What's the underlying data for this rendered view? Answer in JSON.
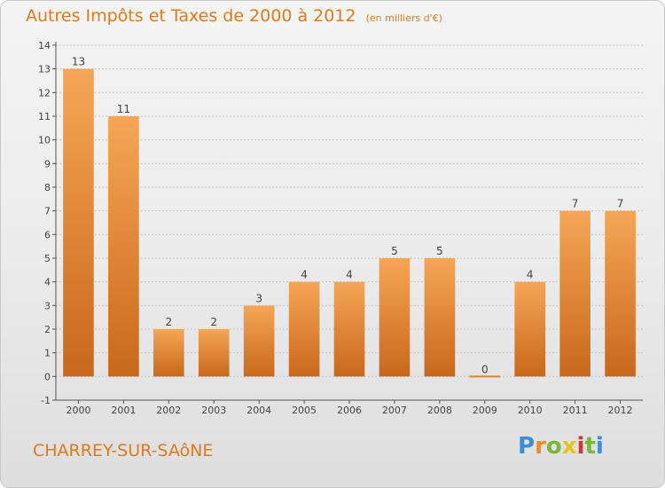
{
  "title": "Autres Impôts et Taxes de 2000 à 2012",
  "unit_note": "(en milliers d'€)",
  "commune": "CHARREY-SUR-SAôNE",
  "logo": {
    "letters": [
      "P",
      "r",
      "o",
      "x",
      "i",
      "t",
      "i"
    ],
    "colors": [
      "#3a8fd6",
      "#f08a24",
      "#7ab83a",
      "#e8c020",
      "#d6333a",
      "#7ab83a",
      "#3a8fd6"
    ]
  },
  "colors": {
    "bar": "#f08a30",
    "bar_dark": "#c8681a",
    "accent": "#e07a1f"
  },
  "chart_data": {
    "type": "bar",
    "categories": [
      "2000",
      "2001",
      "2002",
      "2003",
      "2004",
      "2005",
      "2006",
      "2007",
      "2008",
      "2009",
      "2010",
      "2011",
      "2012"
    ],
    "values": [
      13,
      11,
      2,
      2,
      3,
      4,
      4,
      5,
      5,
      0,
      4,
      7,
      7
    ],
    "ylim": [
      -1,
      14
    ],
    "yticks": [
      "-1",
      "0",
      "1",
      "2",
      "3",
      "4",
      "5",
      "6",
      "7",
      "8",
      "9",
      "10",
      "11",
      "12",
      "13",
      "14"
    ],
    "grid": true
  }
}
